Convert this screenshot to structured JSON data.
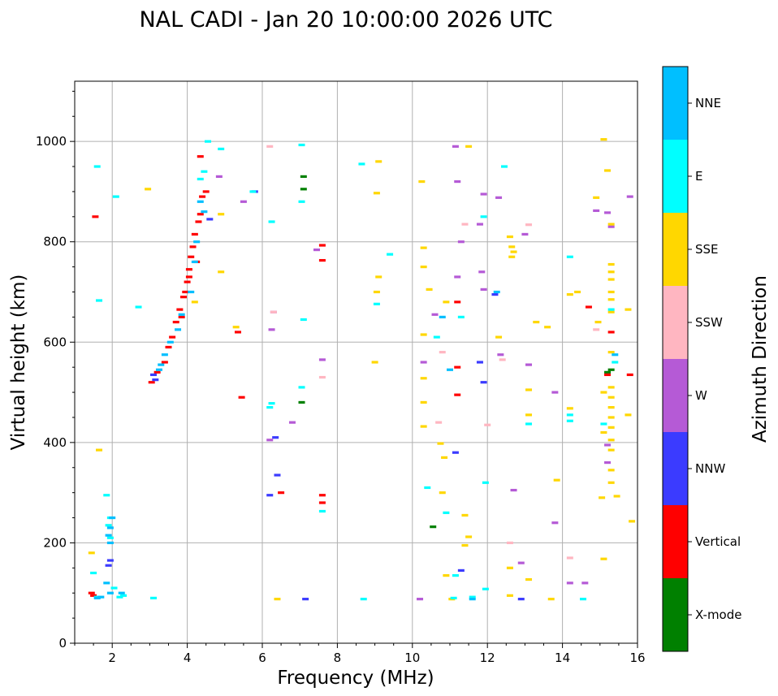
{
  "chart_data": {
    "type": "scatter",
    "title": "NAL CADI - Jan 20 10:00:00 2026 UTC",
    "xlabel": "Frequency (MHz)",
    "ylabel": "Virtual height (km)",
    "xlim": [
      1,
      16
    ],
    "ylim": [
      0,
      1120
    ],
    "xticks": [
      2,
      4,
      6,
      8,
      10,
      12,
      14,
      16
    ],
    "yticks": [
      0,
      200,
      400,
      600,
      800,
      1000
    ],
    "grid": true,
    "colorbar": {
      "label": "Azimuth Direction",
      "categories": [
        {
          "name": "X-mode",
          "color": "#008000"
        },
        {
          "name": "Vertical",
          "color": "#ff0000"
        },
        {
          "name": "NNW",
          "color": "#3b3bff"
        },
        {
          "name": "W",
          "color": "#b55ad6"
        },
        {
          "name": "SSW",
          "color": "#ffb6c1"
        },
        {
          "name": "SSE",
          "color": "#ffd700"
        },
        {
          "name": "E",
          "color": "#00ffff"
        },
        {
          "name": "NNE",
          "color": "#00bfff"
        }
      ]
    },
    "series": [
      {
        "name": "X-mode",
        "points": [
          [
            7.1,
            930
          ],
          [
            7.1,
            905
          ],
          [
            7.05,
            480
          ],
          [
            10.55,
            232
          ],
          [
            15.2,
            540
          ],
          [
            15.3,
            545
          ]
        ]
      },
      {
        "name": "Vertical",
        "points": [
          [
            1.55,
            850
          ],
          [
            1.5,
            95
          ],
          [
            1.45,
            100
          ],
          [
            3.05,
            520
          ],
          [
            3.2,
            540
          ],
          [
            3.4,
            560
          ],
          [
            3.5,
            590
          ],
          [
            3.6,
            610
          ],
          [
            3.7,
            640
          ],
          [
            3.8,
            665
          ],
          [
            3.9,
            690
          ],
          [
            4.0,
            720
          ],
          [
            4.05,
            745
          ],
          [
            4.1,
            770
          ],
          [
            4.15,
            790
          ],
          [
            4.2,
            815
          ],
          [
            4.3,
            840
          ],
          [
            4.35,
            855
          ],
          [
            4.25,
            760
          ],
          [
            3.95,
            700
          ],
          [
            4.05,
            730
          ],
          [
            3.85,
            650
          ],
          [
            4.4,
            890
          ],
          [
            4.5,
            900
          ],
          [
            4.35,
            970
          ],
          [
            5.35,
            620
          ],
          [
            5.45,
            490
          ],
          [
            6.5,
            300
          ],
          [
            7.6,
            295
          ],
          [
            7.6,
            280
          ],
          [
            7.6,
            763
          ],
          [
            7.6,
            793
          ],
          [
            11.2,
            495
          ],
          [
            11.2,
            550
          ],
          [
            11.2,
            680
          ],
          [
            14.7,
            670
          ],
          [
            15.2,
            535
          ],
          [
            15.3,
            620
          ],
          [
            15.8,
            535
          ]
        ]
      },
      {
        "name": "NNW",
        "points": [
          [
            1.95,
            165
          ],
          [
            1.9,
            155
          ],
          [
            3.1,
            535
          ],
          [
            3.15,
            525
          ],
          [
            4.6,
            845
          ],
          [
            5.8,
            900
          ],
          [
            6.2,
            295
          ],
          [
            6.35,
            410
          ],
          [
            6.4,
            335
          ],
          [
            7.15,
            88
          ],
          [
            11.15,
            380
          ],
          [
            11.3,
            145
          ],
          [
            11.9,
            520
          ],
          [
            12.2,
            695
          ],
          [
            12.9,
            88
          ],
          [
            11.8,
            560
          ]
        ]
      },
      {
        "name": "W",
        "points": [
          [
            4.85,
            930
          ],
          [
            5.5,
            880
          ],
          [
            6.2,
            405
          ],
          [
            6.3,
            660
          ],
          [
            6.25,
            625
          ],
          [
            6.8,
            440
          ],
          [
            7.45,
            784
          ],
          [
            7.6,
            565
          ],
          [
            10.3,
            560
          ],
          [
            10.6,
            655
          ],
          [
            11.15,
            990
          ],
          [
            11.2,
            920
          ],
          [
            11.3,
            800
          ],
          [
            11.2,
            730
          ],
          [
            11.9,
            895
          ],
          [
            11.8,
            835
          ],
          [
            11.85,
            740
          ],
          [
            11.9,
            705
          ],
          [
            12.3,
            888
          ],
          [
            12.35,
            575
          ],
          [
            12.7,
            305
          ],
          [
            13.0,
            815
          ],
          [
            13.1,
            555
          ],
          [
            13.8,
            500
          ],
          [
            13.8,
            240
          ],
          [
            14.2,
            120
          ],
          [
            14.6,
            120
          ],
          [
            14.9,
            862
          ],
          [
            15.2,
            858
          ],
          [
            15.3,
            830
          ],
          [
            15.2,
            395
          ],
          [
            15.2,
            360
          ],
          [
            15.8,
            890
          ],
          [
            12.9,
            160
          ],
          [
            10.2,
            88
          ]
        ]
      },
      {
        "name": "SSW",
        "points": [
          [
            6.2,
            990
          ],
          [
            6.3,
            660
          ],
          [
            7.6,
            530
          ],
          [
            10.7,
            440
          ],
          [
            10.8,
            580
          ],
          [
            11.4,
            835
          ],
          [
            12.4,
            565
          ],
          [
            12.6,
            200
          ],
          [
            13.1,
            834
          ],
          [
            14.2,
            170
          ],
          [
            14.9,
            625
          ],
          [
            12.0,
            435
          ]
        ]
      },
      {
        "name": "SSE",
        "points": [
          [
            1.45,
            180
          ],
          [
            1.65,
            385
          ],
          [
            2.95,
            905
          ],
          [
            4.2,
            680
          ],
          [
            4.9,
            855
          ],
          [
            5.3,
            630
          ],
          [
            4.9,
            740
          ],
          [
            6.4,
            88
          ],
          [
            9.1,
            960
          ],
          [
            9.05,
            897
          ],
          [
            9.1,
            730
          ],
          [
            9.05,
            700
          ],
          [
            9.0,
            560
          ],
          [
            10.25,
            920
          ],
          [
            10.3,
            788
          ],
          [
            10.3,
            750
          ],
          [
            10.3,
            615
          ],
          [
            10.3,
            528
          ],
          [
            10.3,
            480
          ],
          [
            10.3,
            432
          ],
          [
            10.45,
            705
          ],
          [
            10.75,
            398
          ],
          [
            10.8,
            300
          ],
          [
            10.85,
            370
          ],
          [
            10.9,
            680
          ],
          [
            10.9,
            135
          ],
          [
            11.05,
            88
          ],
          [
            11.5,
            990
          ],
          [
            11.4,
            255
          ],
          [
            11.4,
            195
          ],
          [
            11.5,
            212
          ],
          [
            12.3,
            610
          ],
          [
            12.6,
            810
          ],
          [
            12.65,
            790
          ],
          [
            12.7,
            780
          ],
          [
            12.65,
            770
          ],
          [
            12.6,
            150
          ],
          [
            12.6,
            95
          ],
          [
            13.1,
            505
          ],
          [
            13.1,
            455
          ],
          [
            13.1,
            127
          ],
          [
            13.3,
            640
          ],
          [
            13.6,
            630
          ],
          [
            13.7,
            88
          ],
          [
            13.85,
            325
          ],
          [
            14.2,
            695
          ],
          [
            14.2,
            468
          ],
          [
            14.4,
            700
          ],
          [
            14.9,
            888
          ],
          [
            14.95,
            640
          ],
          [
            15.1,
            1004
          ],
          [
            15.2,
            942
          ],
          [
            15.1,
            500
          ],
          [
            15.1,
            420
          ],
          [
            15.05,
            290
          ],
          [
            15.1,
            168
          ],
          [
            15.3,
            835
          ],
          [
            15.3,
            755
          ],
          [
            15.3,
            740
          ],
          [
            15.3,
            725
          ],
          [
            15.3,
            700
          ],
          [
            15.3,
            685
          ],
          [
            15.3,
            660
          ],
          [
            15.3,
            580
          ],
          [
            15.3,
            510
          ],
          [
            15.3,
            490
          ],
          [
            15.3,
            470
          ],
          [
            15.3,
            450
          ],
          [
            15.3,
            430
          ],
          [
            15.3,
            405
          ],
          [
            15.3,
            385
          ],
          [
            15.3,
            345
          ],
          [
            15.3,
            320
          ],
          [
            15.45,
            293
          ],
          [
            15.75,
            665
          ],
          [
            15.75,
            455
          ],
          [
            15.85,
            243
          ]
        ]
      },
      {
        "name": "E",
        "points": [
          [
            1.6,
            950
          ],
          [
            1.65,
            683
          ],
          [
            2.1,
            890
          ],
          [
            2.7,
            670
          ],
          [
            2.2,
            92
          ],
          [
            3.1,
            90
          ],
          [
            4.55,
            1000
          ],
          [
            4.45,
            940
          ],
          [
            4.35,
            925
          ],
          [
            4.9,
            985
          ],
          [
            5.75,
            900
          ],
          [
            6.25,
            840
          ],
          [
            6.25,
            478
          ],
          [
            6.2,
            470
          ],
          [
            7.05,
            880
          ],
          [
            7.05,
            510
          ],
          [
            7.1,
            645
          ],
          [
            7.05,
            993
          ],
          [
            7.6,
            263
          ],
          [
            8.65,
            955
          ],
          [
            9.05,
            676
          ],
          [
            9.4,
            775
          ],
          [
            10.4,
            310
          ],
          [
            10.65,
            610
          ],
          [
            10.9,
            260
          ],
          [
            11.1,
            90
          ],
          [
            11.15,
            135
          ],
          [
            11.6,
            92
          ],
          [
            11.95,
            320
          ],
          [
            11.95,
            108
          ],
          [
            12.45,
            950
          ],
          [
            13.1,
            437
          ],
          [
            14.2,
            770
          ],
          [
            14.2,
            455
          ],
          [
            14.2,
            443
          ],
          [
            14.55,
            88
          ],
          [
            15.1,
            437
          ],
          [
            15.3,
            665
          ],
          [
            15.4,
            560
          ],
          [
            1.9,
            235
          ],
          [
            1.95,
            210
          ],
          [
            1.5,
            140
          ],
          [
            1.6,
            92
          ],
          [
            2.05,
            110
          ],
          [
            2.3,
            95
          ],
          [
            1.85,
            295
          ],
          [
            1.95,
            250
          ],
          [
            8.7,
            88
          ],
          [
            11.9,
            850
          ],
          [
            11.3,
            650
          ]
        ]
      },
      {
        "name": "NNE",
        "points": [
          [
            1.6,
            90
          ],
          [
            1.7,
            92
          ],
          [
            1.95,
            230
          ],
          [
            1.9,
            215
          ],
          [
            1.95,
            200
          ],
          [
            2.0,
            250
          ],
          [
            1.85,
            120
          ],
          [
            1.95,
            100
          ],
          [
            2.25,
            100
          ],
          [
            3.25,
            545
          ],
          [
            3.3,
            555
          ],
          [
            3.4,
            575
          ],
          [
            3.55,
            600
          ],
          [
            3.75,
            625
          ],
          [
            3.85,
            655
          ],
          [
            4.1,
            700
          ],
          [
            4.2,
            760
          ],
          [
            4.25,
            800
          ],
          [
            4.45,
            860
          ],
          [
            4.35,
            880
          ],
          [
            10.8,
            650
          ],
          [
            11.0,
            545
          ],
          [
            11.6,
            88
          ],
          [
            12.25,
            700
          ],
          [
            15.4,
            575
          ]
        ]
      }
    ]
  }
}
